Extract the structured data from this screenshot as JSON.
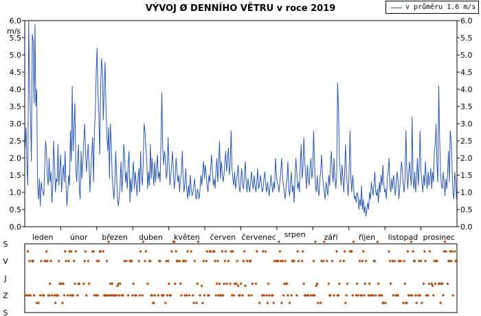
{
  "title": "VÝVOJ Ø DENNÍHO VĚTRU v roce 2019",
  "legend": {
    "label": "v průměru 1.6 m/s",
    "color": "#2a57b3"
  },
  "chart_data": {
    "type": "line",
    "title": "VÝVOJ Ø DENNÍHO VĚTRU v roce 2019",
    "ylabel": "m/s",
    "ylim": [
      0,
      6
    ],
    "yticks": [
      "0.0",
      "0.5",
      "1.0",
      "1.5",
      "2.0",
      "2.5",
      "3.0",
      "3.5",
      "4.0",
      "4.5",
      "5.0",
      "5.5",
      "6.0"
    ],
    "months": [
      "leden",
      "únor",
      "březen",
      "duben",
      "květen",
      "červen",
      "červenec",
      "srpen",
      "září",
      "říjen",
      "listopad",
      "prosinec"
    ],
    "grid": false,
    "series": [
      {
        "name": "v průměru 1.6 m/s",
        "color": "#2a57b3",
        "values": [
          2.3,
          2.9,
          1.8,
          1.2,
          6.0,
          4.1,
          3.2,
          1.9,
          5.6,
          5.4,
          3.6,
          5.9,
          3.5,
          4.0,
          1.2,
          0.8,
          1.4,
          0.6,
          1.3,
          1.1,
          1.0,
          0.9,
          1.8,
          2.5,
          2.2,
          1.5,
          1.2,
          2.0,
          1.3,
          1.6,
          0.7,
          1.1,
          2.5,
          1.9,
          1.0,
          1.4,
          1.3,
          2.4,
          1.2,
          1.7,
          2.1,
          1.0,
          1.5,
          1.8,
          1.3,
          2.2,
          1.2,
          0.6,
          1.0,
          1.5,
          1.2,
          2.8,
          1.9,
          4.1,
          2.2,
          2.9,
          3.6,
          1.7,
          1.3,
          1.9,
          2.4,
          1.1,
          0.8,
          2.2,
          1.4,
          1.9,
          2.5,
          3.0,
          2.2,
          1.6,
          2.0,
          2.4,
          1.8,
          1.0,
          1.7,
          2.1,
          2.6,
          1.3,
          2.8,
          3.3,
          4.5,
          5.2,
          3.9,
          3.3,
          2.1,
          4.0,
          4.9,
          4.6,
          3.1,
          4.0,
          4.8,
          3.5,
          2.7,
          2.2,
          2.9,
          1.4,
          3.0,
          2.4,
          1.5,
          1.1,
          0.8,
          1.3,
          2.2,
          1.5,
          0.8,
          0.6,
          0.9,
          1.2,
          1.9,
          1.0,
          1.5,
          2.4,
          2.1,
          1.3,
          1.6,
          1.1,
          1.8,
          2.2,
          0.7,
          1.4,
          1.0,
          1.5,
          1.9,
          1.1,
          1.6,
          1.3,
          0.9,
          1.4,
          1.7,
          1.0,
          2.2,
          1.5,
          1.2,
          1.8,
          3.0,
          2.8,
          2.3,
          1.9,
          1.1,
          1.6,
          1.2,
          2.4,
          1.4,
          2.0,
          1.6,
          1.2,
          1.9,
          1.3,
          1.7,
          2.1,
          1.4,
          1.6,
          1.3,
          2.5,
          3.9,
          2.3,
          1.8,
          2.2,
          2.0,
          1.4,
          1.6,
          2.6,
          1.9,
          1.2,
          1.5,
          1.8,
          2.2,
          1.6,
          1.1,
          1.4,
          2.0,
          1.7,
          1.3,
          1.5,
          1.0,
          1.4,
          1.6,
          2.2,
          1.4,
          1.0,
          1.3,
          1.7,
          1.1,
          0.8,
          1.2,
          0.9,
          1.5,
          1.1,
          0.9,
          1.0,
          1.2,
          1.4,
          0.9,
          0.8,
          1.1,
          1.0,
          0.8,
          1.1,
          1.5,
          1.2,
          1.6,
          1.9,
          1.4,
          1.8,
          1.5,
          1.2,
          1.0,
          1.5,
          1.3,
          1.7,
          2.1,
          1.6,
          1.2,
          1.4,
          1.1,
          1.6,
          2.0,
          1.3,
          1.8,
          2.5,
          1.4,
          1.9,
          1.6,
          1.3,
          1.5,
          1.9,
          2.2,
          1.6,
          2.0,
          2.3,
          1.5,
          1.8,
          2.8,
          1.7,
          1.4,
          1.2,
          1.6,
          1.1,
          1.3,
          1.5,
          1.8,
          1.2,
          1.0,
          1.4,
          1.7,
          1.2,
          1.1,
          1.5,
          1.9,
          1.3,
          1.0,
          1.4,
          1.2,
          1.0,
          1.3,
          1.6,
          1.3,
          1.1,
          1.5,
          1.2,
          1.0,
          1.3,
          1.7,
          1.1,
          1.2,
          1.5,
          1.3,
          1.0,
          1.1,
          1.4,
          1.6,
          1.2,
          1.0,
          1.3,
          1.1,
          0.9,
          1.2,
          1.5,
          1.2,
          1.0,
          1.3,
          1.1,
          2.0,
          1.5,
          1.3,
          1.2,
          1.0,
          1.3,
          1.6,
          2.0,
          1.4,
          1.2,
          1.0,
          0.8,
          1.2,
          1.4,
          1.9,
          1.1,
          0.9,
          1.3,
          1.6,
          1.0,
          1.2,
          0.7,
          1.4,
          2.0,
          1.6,
          1.1,
          1.3,
          1.0,
          1.8,
          2.4,
          1.4,
          1.7,
          2.6,
          1.9,
          1.5,
          1.1,
          1.8,
          1.4,
          1.2,
          1.7,
          2.0,
          1.4,
          1.6,
          2.8,
          1.9,
          1.2,
          1.0,
          1.5,
          1.1,
          0.9,
          1.4,
          1.6,
          2.1,
          1.5,
          1.2,
          1.0,
          0.8,
          1.3,
          1.1,
          0.9,
          1.5,
          1.2,
          1.8,
          2.2,
          1.6,
          1.3,
          2.0,
          1.4,
          1.1,
          1.5,
          4.2,
          3.5,
          2.0,
          1.6,
          1.2,
          1.8,
          1.4,
          1.0,
          1.6,
          2.4,
          1.5,
          1.2,
          0.9,
          1.6,
          2.8,
          1.4,
          1.0,
          1.5,
          1.2,
          0.8,
          0.9,
          0.7,
          1.0,
          0.9,
          0.5,
          0.8,
          0.6,
          1.2,
          0.5,
          0.8,
          0.4,
          0.6,
          0.3,
          0.5,
          0.7,
          0.5,
          1.0,
          0.8,
          1.3,
          1.1,
          0.9,
          1.2,
          1.6,
          1.0,
          0.9,
          1.1,
          0.7,
          1.3,
          1.0,
          1.5,
          1.2,
          1.8,
          1.3,
          1.0,
          1.1,
          0.8,
          1.4,
          1.6,
          2.0,
          1.2,
          1.0,
          1.4,
          1.1,
          1.5,
          1.3,
          0.9,
          1.2,
          1.6,
          1.4,
          0.8,
          1.1,
          1.5,
          1.9,
          1.6,
          1.2,
          1.0,
          1.4,
          2.8,
          1.7,
          1.1,
          1.5,
          1.9,
          1.5,
          1.2,
          3.2,
          1.4,
          1.1,
          1.6,
          1.0,
          1.4,
          2.0,
          1.2,
          1.8,
          2.8,
          1.6,
          1.3,
          1.0,
          1.5,
          1.2,
          1.9,
          1.4,
          1.1,
          1.6,
          1.2,
          1.4,
          1.7,
          1.1,
          1.6,
          1.3,
          2.2,
          2.4,
          3.0,
          1.8,
          1.3,
          4.1,
          2.6,
          1.6,
          1.2,
          1.1,
          1.6,
          1.3,
          0.9,
          1.4,
          1.1,
          1.6,
          2.2,
          1.3,
          2.8,
          2.5,
          1.7,
          1.0,
          0.8,
          1.6,
          1.3,
          0.8
        ]
      }
    ]
  },
  "direction_chart": {
    "ylabels": [
      "S",
      "V",
      "J",
      "Z",
      "S"
    ]
  }
}
